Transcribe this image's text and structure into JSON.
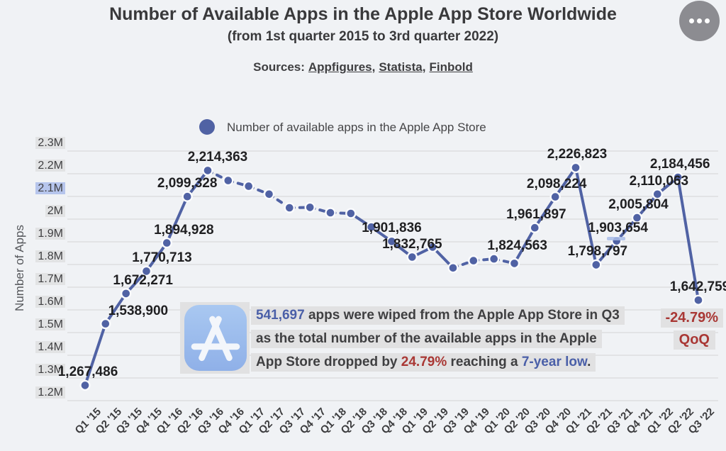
{
  "header": {
    "title": "Number of Available Apps in the Apple App Store Worldwide",
    "subtitle": "(from 1st quarter 2015 to 3rd quarter 2022)",
    "sources_label": "Sources:",
    "sources": [
      {
        "label": "Appfigures,"
      },
      {
        "label": "Statista,"
      },
      {
        "label": "Finbold"
      }
    ]
  },
  "menu": {
    "icon": "ellipsis-icon"
  },
  "legend": {
    "label": "Number of available apps in the Apple App Store"
  },
  "y_axis": {
    "title": "Number of Apps",
    "ticks": [
      "2.3M",
      "2.2M",
      "2.1M",
      "2M",
      "1.9M",
      "1.8M",
      "1.7M",
      "1.6M",
      "1.5M",
      "1.4M",
      "1.3M",
      "1.2M"
    ],
    "highlighted_tick": "2.1M"
  },
  "chart_data": {
    "type": "line",
    "title": "Number of Available Apps in the Apple App Store Worldwide",
    "series_name": "Number of available apps in the Apple App Store",
    "xlabel": "",
    "ylabel": "Number of Apps",
    "ylim": [
      1200000,
      2300000
    ],
    "y_tick_step": 100000,
    "grid": true,
    "legend_position": "top",
    "line_color": "#5062a4",
    "categories": [
      "Q1 '15",
      "Q2 '15",
      "Q3 '15",
      "Q4 '15",
      "Q1 '16",
      "Q2 '16",
      "Q3 '16",
      "Q4 '16",
      "Q1 '17",
      "Q2 '17",
      "Q3 '17",
      "Q4 '17",
      "Q1 '18",
      "Q2 '18",
      "Q3 '18",
      "Q4 '18",
      "Q1 '19",
      "Q2 '19",
      "Q3 '19",
      "Q4 '19",
      "Q1 '20",
      "Q2 '20",
      "Q3 '20",
      "Q4 '20",
      "Q1 '21",
      "Q2 '21",
      "Q3 '21",
      "Q4 '21",
      "Q1 '22",
      "Q2 '22",
      "Q3 '22"
    ],
    "values": [
      1267486,
      1538900,
      1672271,
      1770713,
      1894928,
      2099328,
      2214363,
      2170000,
      2145000,
      2110000,
      2050000,
      2052000,
      2028000,
      2025000,
      1965000,
      1901836,
      1832765,
      1877000,
      1785000,
      1817000,
      1824563,
      1805000,
      1961897,
      2098224,
      2226823,
      1798797,
      1903654,
      2005804,
      2110063,
      2184456,
      1642759
    ],
    "labeled_points": [
      {
        "i": 0,
        "label": "1,267,486",
        "dx": 4
      },
      {
        "i": 1,
        "label": "1,538,900",
        "dx": 46
      },
      {
        "i": 2,
        "label": "1,672,271",
        "dx": 24
      },
      {
        "i": 3,
        "label": "1,770,713",
        "dx": 22
      },
      {
        "i": 4,
        "label": "1,894,928",
        "dx": 24
      },
      {
        "i": 5,
        "label": "2,099,328",
        "dx": 0
      },
      {
        "i": 6,
        "label": "2,214,363",
        "dx": 14
      },
      {
        "i": 15,
        "label": "1,901,836",
        "dx": 0
      },
      {
        "i": 16,
        "label": "1,832,765",
        "dx": 0
      },
      {
        "i": 20,
        "label": "1,824,563",
        "dx": 33
      },
      {
        "i": 22,
        "label": "1,961,897",
        "dx": 2
      },
      {
        "i": 23,
        "label": "2,098,224",
        "dx": 2
      },
      {
        "i": 24,
        "label": "2,226,823",
        "dx": 2
      },
      {
        "i": 25,
        "label": "1,798,797",
        "dx": 2
      },
      {
        "i": 26,
        "label": "1,903,654",
        "dx": 2
      },
      {
        "i": 27,
        "label": "2,005,804",
        "dx": 2
      },
      {
        "i": 28,
        "label": "2,110,063",
        "dx": 2
      },
      {
        "i": 29,
        "label": "2,184,456",
        "dx": 3
      },
      {
        "i": 30,
        "label": "1,642,759",
        "dx": 2
      }
    ],
    "dashed_segments": [
      6,
      7,
      8,
      9,
      10,
      11,
      12,
      18,
      19,
      20
    ]
  },
  "annotation": {
    "icon": "app-store-icon",
    "lines": [
      [
        {
          "text": "541,697",
          "color": "blue"
        },
        {
          "text": " apps were wiped from the Apple App Store in Q3",
          "color": "dark"
        }
      ],
      [
        {
          "text": "as the total number of the available apps in the Apple",
          "color": "dark"
        }
      ],
      [
        {
          "text": "App Store dropped by ",
          "color": "dark"
        },
        {
          "text": "24.79%",
          "color": "red"
        },
        {
          "text": " reaching a ",
          "color": "dark"
        },
        {
          "text": "7-year low",
          "color": "blue"
        },
        {
          "text": ".",
          "color": "dark"
        }
      ]
    ]
  },
  "side_badge": {
    "change": "-24.79%",
    "label": "QoQ"
  },
  "colors": {
    "background": "#f0f2f5",
    "line": "#5062a4",
    "grid": "#d9dadc",
    "text_dark": "#3f3f41",
    "accent_blue": "#4a5fa8",
    "accent_red": "#a93734",
    "tick_chip": "#e2e3e4",
    "highlight_chip": "#b6c5ec",
    "icon_blue": "#9bbcee"
  }
}
